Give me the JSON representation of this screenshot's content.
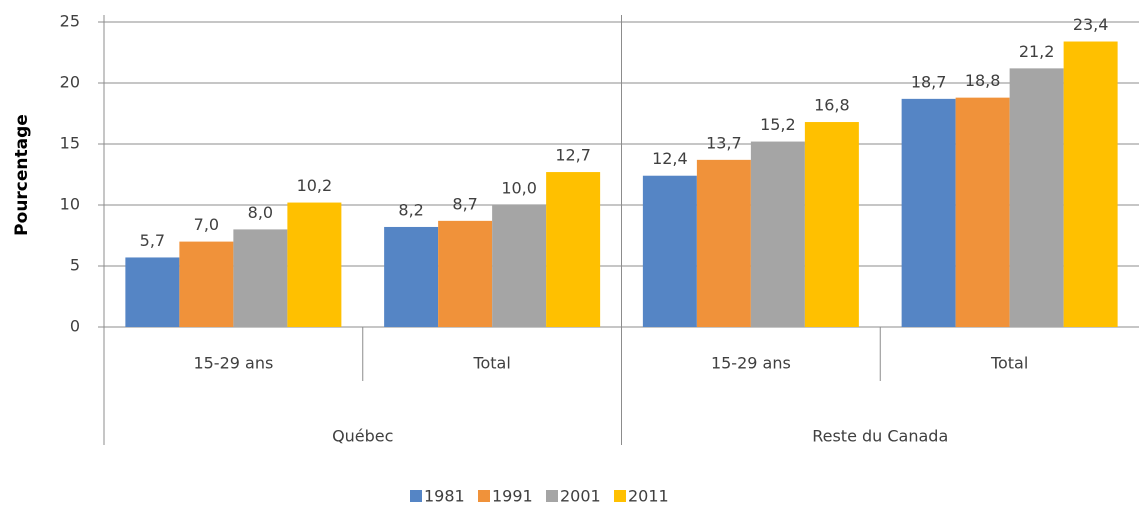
{
  "chart_data": {
    "type": "bar",
    "y_label": "Pourcentage",
    "categories": [
      "15-29 ans",
      "Total",
      "15-29 ans",
      "Total"
    ],
    "groups": [
      "Québec",
      "Reste du Canada"
    ],
    "series": [
      {
        "name": "1981",
        "color": "#5585c5",
        "values": [
          5.7,
          8.2,
          12.4,
          18.7
        ],
        "value_labels": [
          "5,7",
          "8,2",
          "12,4",
          "18,7"
        ]
      },
      {
        "name": "1991",
        "color": "#f0923a",
        "values": [
          7.0,
          8.7,
          13.7,
          18.8
        ],
        "value_labels": [
          "7,0",
          "8,7",
          "13,7",
          "18,8"
        ]
      },
      {
        "name": "2001",
        "color": "#a5a5a5",
        "values": [
          8.0,
          10.0,
          15.2,
          21.2
        ],
        "value_labels": [
          "8,0",
          "10,0",
          "15,2",
          "21,2"
        ]
      },
      {
        "name": "2011",
        "color": "#ffc000",
        "values": [
          10.2,
          12.7,
          16.8,
          23.4
        ],
        "value_labels": [
          "10,2",
          "12,7",
          "16,8",
          "23,4"
        ]
      }
    ],
    "ylim": [
      0,
      25
    ],
    "yticks": [
      0,
      5,
      10,
      15,
      20,
      25
    ],
    "grid": true,
    "legend": "bottom"
  }
}
